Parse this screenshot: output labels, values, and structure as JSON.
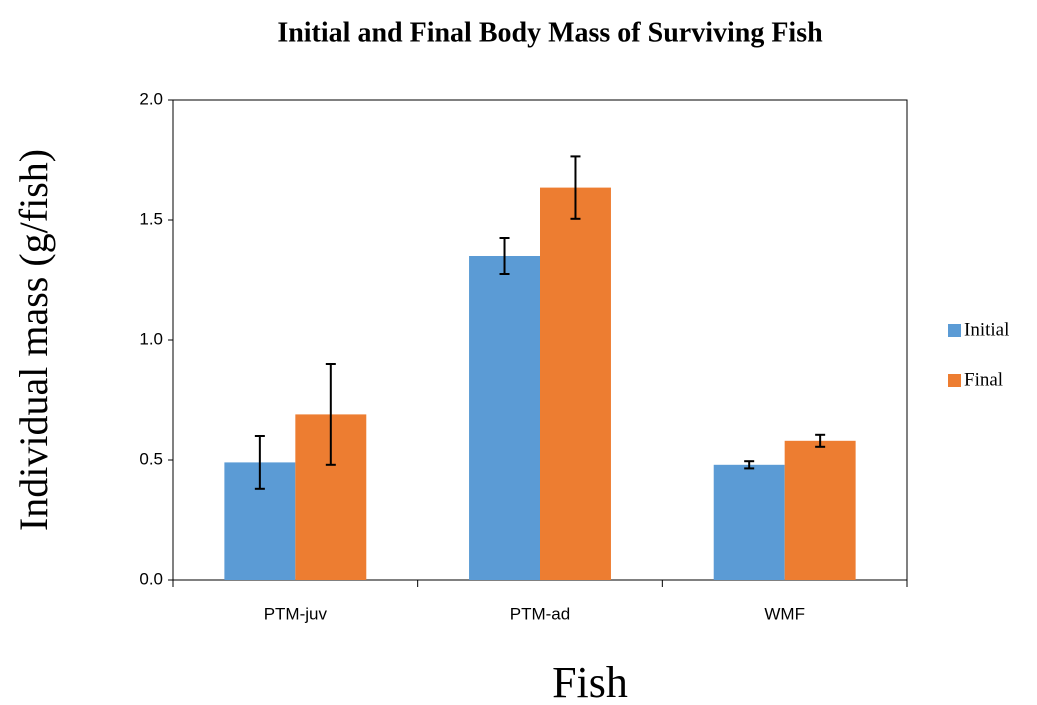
{
  "chart_data": {
    "type": "bar",
    "title": "Initial and Final Body Mass of Surviving Fish",
    "x_label": "Fish",
    "y_label": "Individual mass (g/fish)",
    "categories": [
      "PTM-juv",
      "PTM-ad",
      "WMF"
    ],
    "series": [
      {
        "name": "Initial",
        "color": "#5b9bd5",
        "values": [
          0.49,
          1.35,
          0.48
        ],
        "errors": [
          0.11,
          0.075,
          0.015
        ]
      },
      {
        "name": "Final",
        "color": "#ed7d31",
        "values": [
          0.69,
          1.635,
          0.58
        ],
        "errors": [
          0.21,
          0.13,
          0.025
        ]
      }
    ],
    "ylim": [
      0,
      2
    ],
    "yticks": [
      {
        "value": 0,
        "label": "0.0"
      },
      {
        "value": 0.5,
        "label": "0.5"
      },
      {
        "value": 1,
        "label": "1.0"
      },
      {
        "value": 1.5,
        "label": "1.5"
      },
      {
        "value": 2,
        "label": "2.0"
      }
    ],
    "grid": false,
    "legend": "right"
  }
}
